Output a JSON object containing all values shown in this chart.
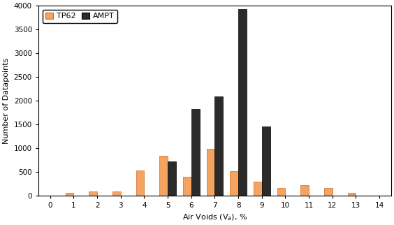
{
  "x_labels": [
    0,
    1,
    2,
    3,
    4,
    5,
    6,
    7,
    8,
    9,
    10,
    11,
    12,
    13,
    14
  ],
  "tp62_values": [
    0,
    50,
    80,
    80,
    530,
    840,
    390,
    980,
    510,
    290,
    150,
    220,
    155,
    60,
    0
  ],
  "ampt_values": [
    0,
    0,
    0,
    0,
    0,
    710,
    1820,
    2080,
    3930,
    1460,
    0,
    0,
    0,
    0,
    0
  ],
  "tp62_color": "#F4A460",
  "tp62_edge": "#cc6622",
  "ampt_color": "#2b2b2b",
  "ampt_edge": "#000000",
  "xlabel": "Air Voids (V$_a$), %",
  "ylabel": "Number of Datapoints",
  "ylim": [
    0,
    4000
  ],
  "yticks": [
    0,
    500,
    1000,
    1500,
    2000,
    2500,
    3000,
    3500,
    4000
  ],
  "xlim": [
    -0.5,
    14.5
  ],
  "legend_labels": [
    "TP62",
    "AMPT"
  ],
  "bar_width": 0.35,
  "figsize": [
    5.64,
    3.22
  ],
  "dpi": 100
}
